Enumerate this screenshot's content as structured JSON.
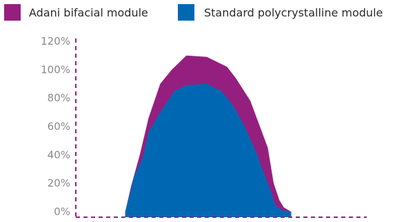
{
  "chart_data": {
    "type": "area",
    "title": "",
    "xlabel": "",
    "ylabel": "",
    "ylim": [
      0,
      120
    ],
    "yticks": [
      "0%",
      "20%",
      "40%",
      "60%",
      "80%",
      "100%",
      "120%"
    ],
    "ytick_values": [
      0,
      20,
      40,
      60,
      80,
      100,
      120
    ],
    "grid": false,
    "legend_position": "top",
    "xlim": [
      0,
      100
    ],
    "series": [
      {
        "name": "Adani bifacial module",
        "color": "#951f7f",
        "x": [
          17,
          19,
          22,
          25,
          29,
          33,
          38,
          45,
          52,
          55,
          60,
          66,
          68,
          70,
          71.5,
          74
        ],
        "values": [
          0,
          18,
          40,
          66,
          90,
          100,
          110,
          109,
          102,
          94,
          78,
          45,
          20,
          8,
          3,
          0
        ]
      },
      {
        "name": "Standard polycrystalline module",
        "color": "#0068b3",
        "x": [
          17,
          18.5,
          20,
          23,
          25,
          29,
          34,
          38,
          45,
          50,
          54,
          58,
          62,
          65,
          67,
          68.5,
          69.5,
          71,
          74
        ],
        "values": [
          0,
          12,
          25,
          38,
          56,
          70,
          85,
          89,
          90,
          85,
          75,
          60,
          42,
          25,
          15,
          5,
          3,
          1,
          0
        ]
      }
    ]
  }
}
